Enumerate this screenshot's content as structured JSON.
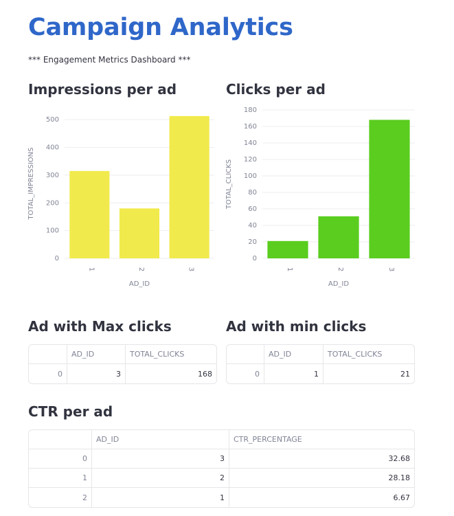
{
  "header": {
    "title": "Campaign Analytics",
    "subtitle": "*** Engagement Metrics Dashboard ***"
  },
  "sections": {
    "impressions": "Impressions per ad",
    "clicks": "Clicks per ad",
    "max_clicks": "Ad with Max clicks",
    "min_clicks": "Ad with min clicks",
    "ctr": "CTR per ad"
  },
  "chart_data": [
    {
      "type": "bar",
      "title": "Impressions per ad",
      "categories": [
        "1",
        "2",
        "3"
      ],
      "values": [
        315,
        180,
        513
      ],
      "xlabel": "AD_ID",
      "ylabel": "TOTAL_IMPRESSIONS",
      "ylim": [
        0,
        540
      ],
      "yticks": [
        0,
        100,
        200,
        300,
        400,
        500
      ],
      "color": "#f1ea4c",
      "grid": true
    },
    {
      "type": "bar",
      "title": "Clicks per ad",
      "categories": [
        "1",
        "2",
        "3"
      ],
      "values": [
        21,
        51,
        168
      ],
      "xlabel": "AD_ID",
      "ylabel": "TOTAL_CLICKS",
      "ylim": [
        0,
        180
      ],
      "yticks": [
        0,
        20,
        40,
        60,
        80,
        100,
        120,
        140,
        160,
        180
      ],
      "color": "#5acd1f",
      "grid": true
    }
  ],
  "tables": {
    "max_clicks": {
      "columns": [
        "",
        "AD_ID",
        "TOTAL_CLICKS"
      ],
      "rows": [
        [
          "0",
          "3",
          "168"
        ]
      ]
    },
    "min_clicks": {
      "columns": [
        "",
        "AD_ID",
        "TOTAL_CLICKS"
      ],
      "rows": [
        [
          "0",
          "1",
          "21"
        ]
      ]
    },
    "ctr": {
      "columns": [
        "",
        "AD_ID",
        "CTR_PERCENTAGE"
      ],
      "rows": [
        [
          "0",
          "3",
          "32.68"
        ],
        [
          "1",
          "2",
          "28.18"
        ],
        [
          "2",
          "1",
          "6.67"
        ]
      ]
    }
  }
}
